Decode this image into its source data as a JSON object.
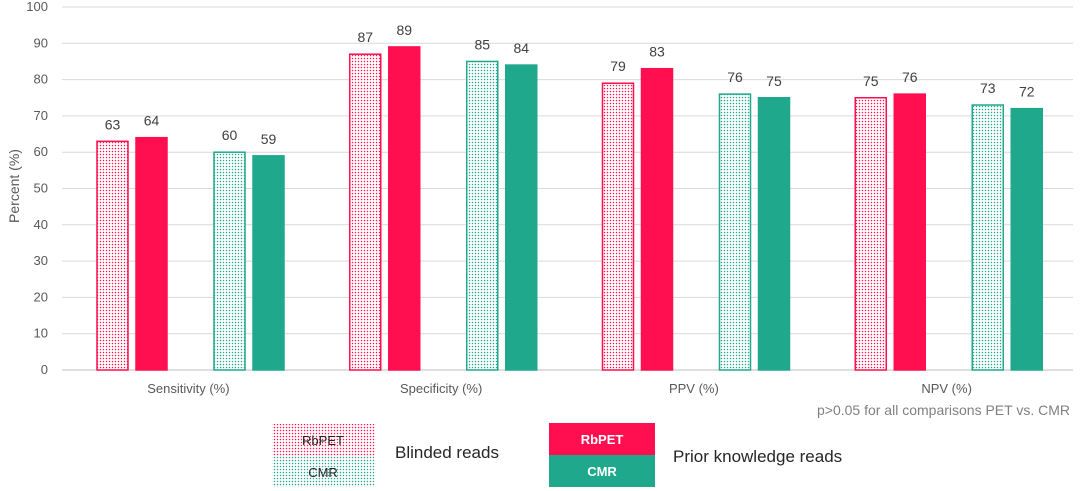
{
  "chart_data": {
    "type": "bar",
    "ylabel": "Percent (%)",
    "ylim": [
      0,
      100
    ],
    "yticks": [
      0,
      10,
      20,
      30,
      40,
      50,
      60,
      70,
      80,
      90,
      100
    ],
    "categories": [
      "Sensitivity (%)",
      "Specificity (%)",
      "PPV (%)",
      "NPV (%)"
    ],
    "series": [
      {
        "name": "RbPET",
        "group": "Blinded reads",
        "color": "#ff0f4f",
        "pattern": "dotted",
        "values": [
          63,
          87,
          79,
          75
        ]
      },
      {
        "name": "RbPET",
        "group": "Prior knowledge reads",
        "color": "#ff0f4f",
        "pattern": "solid",
        "values": [
          64,
          89,
          83,
          76
        ]
      },
      {
        "name": "CMR",
        "group": "Blinded reads",
        "color": "#1fa88c",
        "pattern": "dotted",
        "values": [
          60,
          85,
          76,
          73
        ]
      },
      {
        "name": "CMR",
        "group": "Prior knowledge reads",
        "color": "#1fa88c",
        "pattern": "solid",
        "values": [
          59,
          84,
          75,
          72
        ]
      }
    ],
    "note": "p>0.05 for all comparisons PET vs. CMR",
    "legend": {
      "blinded_label": "Blinded reads",
      "prior_label": "Prior knowledge reads",
      "pet_label": "RbPET",
      "cmr_label": "CMR"
    },
    "grid": true
  }
}
